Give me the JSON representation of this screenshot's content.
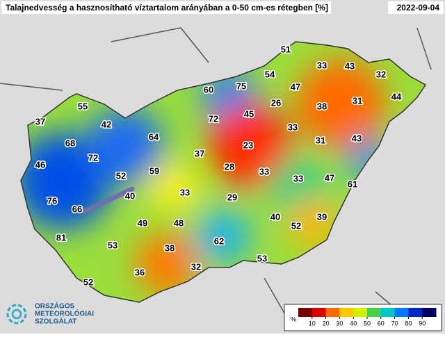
{
  "header": {
    "title": "Talajnedvesség a hasznosítható víztartalom arányában a 0-50 cm-es rétegben [%]",
    "date": "2022-09-04"
  },
  "points": [
    51,
    33,
    43,
    32,
    54,
    75,
    47,
    60,
    44,
    31,
    38,
    26,
    55,
    72,
    45,
    37,
    42,
    33,
    31,
    43,
    64,
    68,
    23,
    72,
    37,
    46,
    52,
    59,
    28,
    33,
    33,
    47,
    61,
    40,
    33,
    76,
    29,
    66,
    40,
    52,
    39,
    49,
    48,
    81,
    53,
    62,
    38,
    53,
    32,
    36,
    52
  ],
  "colorbar": {
    "unit": "%",
    "lim": [
      0,
      100
    ],
    "ticks": [
      10,
      20,
      30,
      40,
      50,
      60,
      70,
      80,
      90
    ],
    "colors": [
      "#7a0000",
      "#e00000",
      "#ff6a00",
      "#ffc800",
      "#d2f000",
      "#46d246",
      "#00c8c8",
      "#0078ff",
      "#0028c8",
      "#000064"
    ]
  },
  "logo": {
    "lines": [
      "ORSZÁGOS",
      "METEOROLÓGIAI",
      "SZOLGÁLAT"
    ]
  }
}
